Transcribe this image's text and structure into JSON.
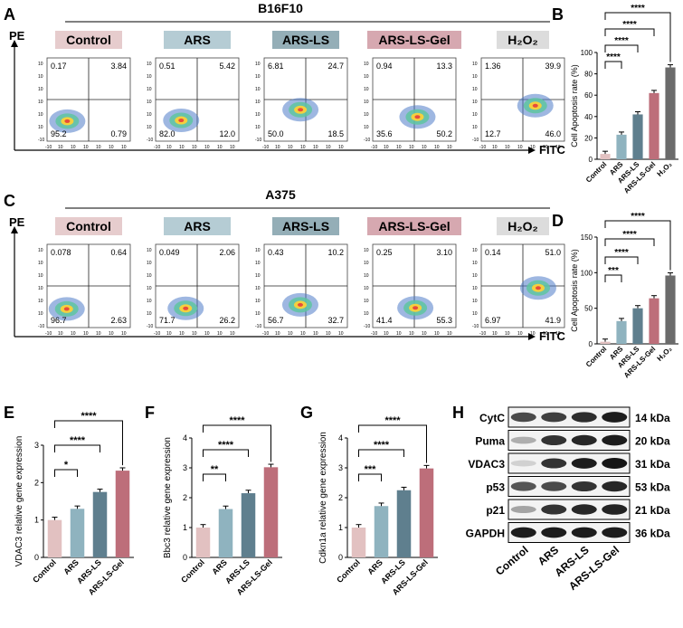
{
  "colors": {
    "control": "#e2c1c1",
    "ars": "#8fb3bf",
    "ars_ls": "#5f7f8e",
    "gel": "#bd6e7a",
    "h2o2": "#6b6b6b",
    "tag_control": "#e6cccd",
    "tag_ars": "#b5ccd4",
    "tag_ars_ls": "#94aeb7",
    "tag_gel": "#d6a8b0",
    "tag_h2o2": "#dcdcdc"
  },
  "panel_letters": [
    "A",
    "B",
    "C",
    "D",
    "E",
    "F",
    "G",
    "H"
  ],
  "flow": {
    "rows": [
      {
        "title": "B16F10",
        "y_label": "PE",
        "x_label": "FITC",
        "groups": [
          "Control",
          "ARS",
          "ARS-LS",
          "ARS-LS-Gel",
          "H₂O₂"
        ],
        "quadrants": [
          [
            "0.17",
            "3.84",
            "95.2",
            "0.79"
          ],
          [
            "0.51",
            "5.42",
            "82.0",
            "12.0"
          ],
          [
            "6.81",
            "24.7",
            "50.0",
            "18.5"
          ],
          [
            "0.94",
            "13.3",
            "35.6",
            "50.2"
          ],
          [
            "1.36",
            "39.9",
            "12.7",
            "46.0"
          ]
        ]
      },
      {
        "title": "A375",
        "y_label": "PE",
        "x_label": "FITC",
        "groups": [
          "Control",
          "ARS",
          "ARS-LS",
          "ARS-LS-Gel",
          "H₂O₂"
        ],
        "quadrants": [
          [
            "0.078",
            "0.64",
            "96.7",
            "2.63"
          ],
          [
            "0.049",
            "2.06",
            "71.7",
            "26.2"
          ],
          [
            "0.43",
            "10.2",
            "56.7",
            "32.7"
          ],
          [
            "0.25",
            "3.10",
            "41.4",
            "55.3"
          ],
          [
            "0.14",
            "51.0",
            "6.97",
            "41.9"
          ]
        ]
      }
    ],
    "axis_ticks": [
      "-10",
      "10",
      "10",
      "10",
      "10",
      "10",
      "10"
    ]
  },
  "chart_data": [
    {
      "panel": "B",
      "type": "bar",
      "categories": [
        "Control",
        "ARS",
        "ARS-LS",
        "ARS-LS-Gel",
        "H₂O₂"
      ],
      "values": [
        5,
        23,
        42,
        62,
        86
      ],
      "ylabel": "Cell Apoptosis rate (%)",
      "ylim": [
        0,
        100
      ],
      "yticks": [
        "0",
        "20",
        "40",
        "60",
        "80",
        "100"
      ],
      "significance": [
        "****",
        "****",
        "****",
        "****"
      ]
    },
    {
      "panel": "D",
      "type": "bar",
      "categories": [
        "Control",
        "ARS",
        "ARS-LS",
        "ARS-LS-Gel",
        "H₂O₂"
      ],
      "values": [
        3,
        32,
        50,
        64,
        96
      ],
      "ylabel": "Cell Apoptosis rate (%)",
      "ylim": [
        0,
        150
      ],
      "yticks": [
        "0",
        "50",
        "100",
        "150"
      ],
      "significance": [
        "****",
        "****",
        "****",
        "***"
      ]
    },
    {
      "panel": "E",
      "type": "bar",
      "categories": [
        "Control",
        "ARS",
        "ARS-LS",
        "ARS-LS-Gel"
      ],
      "values": [
        1.0,
        1.3,
        1.75,
        2.32
      ],
      "ylabel": "VDAC3 relative gene expression",
      "ylim": [
        0,
        3
      ],
      "yticks": [
        "0",
        "1",
        "2",
        "3"
      ],
      "significance": [
        "****",
        "****",
        "*"
      ]
    },
    {
      "panel": "F",
      "type": "bar",
      "categories": [
        "Control",
        "ARS",
        "ARS-LS",
        "ARS-LS-Gel"
      ],
      "values": [
        1.0,
        1.62,
        2.15,
        3.02
      ],
      "ylabel": "Bbc3 relative gene expression",
      "ylim": [
        0,
        4
      ],
      "yticks": [
        "0",
        "1",
        "2",
        "3",
        "4"
      ],
      "significance": [
        "****",
        "****",
        "**"
      ]
    },
    {
      "panel": "G",
      "type": "bar",
      "categories": [
        "Control",
        "ARS",
        "ARS-LS",
        "ARS-LS-Gel"
      ],
      "values": [
        1.0,
        1.72,
        2.25,
        2.98
      ],
      "ylabel": "Cdkn1a relative gene expression",
      "ylim": [
        0,
        4
      ],
      "yticks": [
        "0",
        "1",
        "2",
        "3",
        "4"
      ],
      "significance": [
        "****",
        "****",
        "***"
      ]
    }
  ],
  "western": {
    "proteins": [
      "CytC",
      "Puma",
      "VDAC3",
      "p53",
      "p21",
      "GAPDH"
    ],
    "weights": [
      "14 kDa",
      "20 kDa",
      "31 kDa",
      "53 kDa",
      "21 kDa",
      "36 kDa"
    ],
    "lanes": [
      "Control",
      "ARS",
      "ARS-LS",
      "ARS-LS-Gel"
    ],
    "intensity": [
      [
        0.75,
        0.8,
        0.88,
        0.95
      ],
      [
        0.3,
        0.85,
        0.9,
        0.95
      ],
      [
        0.15,
        0.85,
        0.95,
        0.98
      ],
      [
        0.7,
        0.75,
        0.85,
        0.9
      ],
      [
        0.35,
        0.85,
        0.9,
        0.92
      ],
      [
        0.95,
        0.95,
        0.95,
        0.95
      ]
    ]
  }
}
